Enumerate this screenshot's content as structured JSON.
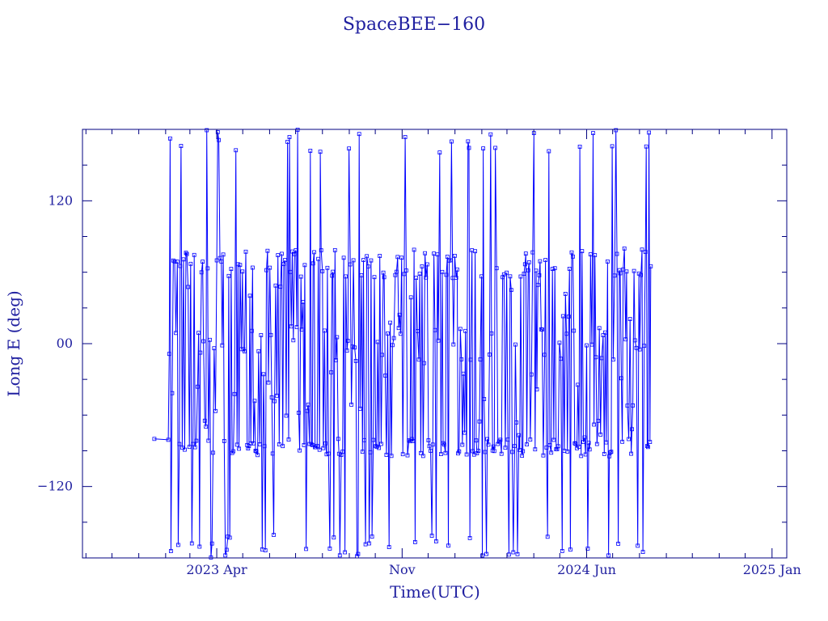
{
  "chart_data": {
    "type": "scatter",
    "title": "SpaceBEE−160",
    "xlabel": "Time(UTC)",
    "ylabel": "Long E (deg)",
    "x_tick_labels": [
      "2023 Apr",
      "Nov",
      "2024 Jun",
      "2025 Jan"
    ],
    "x_tick_dates": [
      "2023-04-01",
      "2023-11-01",
      "2024-06-01",
      "2025-01-01"
    ],
    "y_tick_labels": [
      "120",
      "00",
      "−120"
    ],
    "y_tick_values": [
      120,
      0,
      -120
    ],
    "xlim": [
      "2022-10-28",
      "2025-01-18"
    ],
    "ylim": [
      -180,
      180
    ],
    "grid": false,
    "markers": "small open squares connected by thin lines",
    "series": [
      {
        "start_date": "2023-01-19",
        "start_value": -80,
        "first_dense_date": "2023-02-04",
        "end_date": "2024-08-14",
        "end_value": 65,
        "typical_range": [
          -95,
          80
        ],
        "wraps_full_range": [
          -180,
          180
        ]
      }
    ],
    "colors": {
      "data": "#0000ff",
      "frame": "#000080",
      "text": "#2020a0"
    }
  }
}
